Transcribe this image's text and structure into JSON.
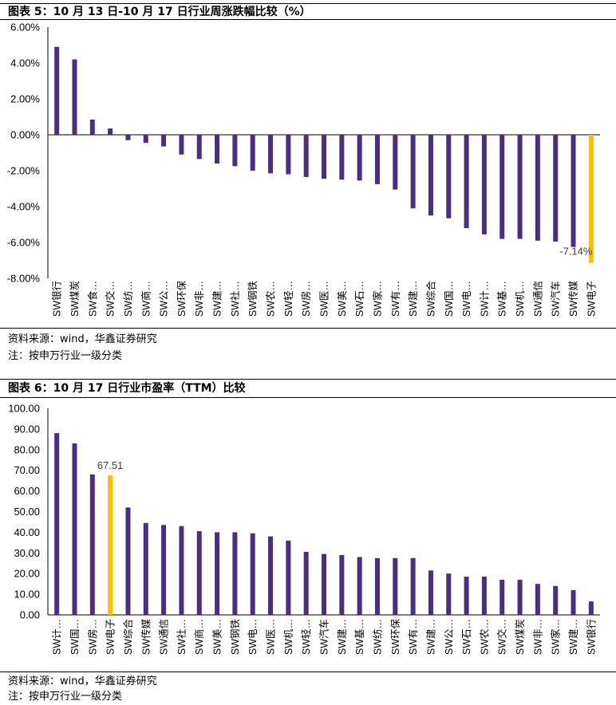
{
  "colors": {
    "primary": "#4b2e83",
    "highlight": "#ffc000"
  },
  "figure5": {
    "title": "图表 5：10 月 13 日-10 月 17 日行业周涨跌幅比较（%）",
    "source": "资料来源：wind，华鑫证券研究",
    "note": "注：按申万行业一级分类"
  },
  "figure6": {
    "title": "图表 6：10 月 17 日行业市盈率（TTM）比较",
    "source": "资料来源：wind，华鑫证券研究",
    "note": "注：按申万行业一级分类"
  },
  "chart_data": [
    {
      "type": "bar",
      "title": "10 月 13 日-10 月 17 日行业周涨跌幅比较（%）",
      "categories": [
        "SW银行",
        "SW煤炭",
        "SW食…",
        "SW交…",
        "SW纺…",
        "SW商…",
        "SW公…",
        "SW环保",
        "SW非…",
        "SW建…",
        "SW社…",
        "SW钢铁",
        "SW农…",
        "SW轻…",
        "SW房…",
        "SW医…",
        "SW美…",
        "SW石…",
        "SW家…",
        "SW有…",
        "SW建…",
        "SW综合",
        "SW国…",
        "SW电…",
        "SW计…",
        "SW基…",
        "SW机…",
        "SW通信",
        "SW汽车",
        "SW传媒",
        "SW电子"
      ],
      "values": [
        4.9,
        4.2,
        0.85,
        0.35,
        -0.3,
        -0.45,
        -0.65,
        -1.1,
        -1.35,
        -1.6,
        -1.75,
        -2.0,
        -2.15,
        -2.2,
        -2.35,
        -2.45,
        -2.5,
        -2.55,
        -2.75,
        -3.05,
        -4.1,
        -4.5,
        -4.65,
        -5.2,
        -5.55,
        -5.8,
        -5.8,
        -5.9,
        -5.95,
        -6.25,
        -7.14
      ],
      "highlight_index": 30,
      "highlight_label": "-7.14%",
      "ylim": [
        -8,
        6
      ],
      "y_ticks": [
        6,
        4,
        2,
        0,
        -2,
        -4,
        -6,
        -8
      ],
      "y_tick_labels": [
        "6.00%",
        "4.00%",
        "2.00%",
        "0.00%",
        "-2.00%",
        "-4.00%",
        "-6.00%",
        "-8.00%"
      ],
      "xlabel": "",
      "ylabel": "",
      "grid": false
    },
    {
      "type": "bar",
      "title": "10 月 17 日行业市盈率（TTM）比较",
      "categories": [
        "SW计…",
        "SW国…",
        "SW房…",
        "SW电子",
        "SW综合",
        "SW传媒",
        "SW通信",
        "SW社…",
        "SW商…",
        "SW美…",
        "SW钢铁",
        "SW电…",
        "SW医…",
        "SW机…",
        "SW轻…",
        "SW汽车",
        "SW建…",
        "SW基…",
        "SW纺…",
        "SW环保",
        "SW有…",
        "SW建…",
        "SW公…",
        "SW石…",
        "SW农…",
        "SW交…",
        "SW煤炭",
        "SW非…",
        "SW家…",
        "SW建…",
        "SW银行"
      ],
      "values": [
        88.0,
        83.0,
        68.0,
        67.51,
        52.0,
        44.5,
        43.5,
        43.0,
        40.5,
        40.0,
        40.0,
        39.5,
        38.0,
        36.0,
        30.5,
        29.5,
        29.0,
        28.0,
        27.5,
        27.5,
        27.5,
        21.5,
        20.0,
        18.5,
        18.5,
        17.0,
        17.0,
        15.0,
        14.0,
        12.0,
        6.5
      ],
      "highlight_index": 3,
      "highlight_label": "67.51",
      "ylim": [
        0,
        100
      ],
      "y_ticks": [
        100,
        90,
        80,
        70,
        60,
        50,
        40,
        30,
        20,
        10,
        0
      ],
      "y_tick_labels": [
        "100.00",
        "90.00",
        "80.00",
        "70.00",
        "60.00",
        "50.00",
        "40.00",
        "30.00",
        "20.00",
        "10.00",
        "0.00"
      ],
      "xlabel": "",
      "ylabel": "",
      "grid": false
    }
  ]
}
